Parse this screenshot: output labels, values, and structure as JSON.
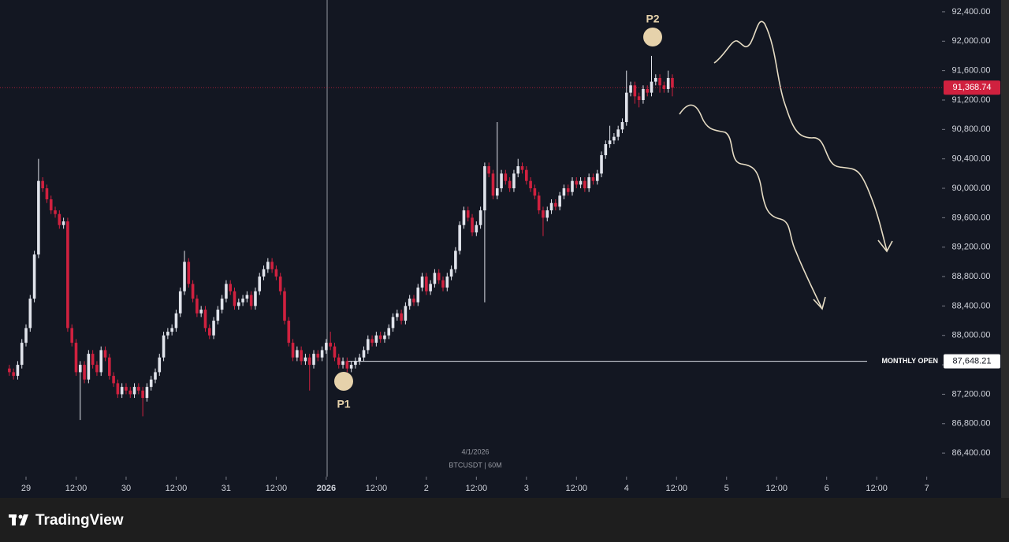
{
  "chart_data": {
    "type": "candlestick",
    "watermark": [
      "4/1/2026",
      "BTCUSDT | 60M"
    ],
    "brand": "TradingView",
    "up_color": "#e0e3eb",
    "down_color": "#d0213f",
    "x": [
      -4,
      -3,
      -2,
      -1,
      0,
      1,
      2,
      3,
      4,
      5,
      6,
      7,
      8,
      9,
      10,
      11,
      12,
      13,
      14,
      15,
      16,
      17,
      18,
      19,
      20,
      21,
      22,
      23,
      24,
      25,
      26,
      27,
      28,
      29,
      30,
      31,
      32,
      33,
      34,
      35,
      36,
      37,
      38,
      39,
      40,
      41,
      42,
      43,
      44,
      45,
      46,
      47,
      48,
      49,
      50,
      51,
      52,
      53,
      54,
      55,
      56,
      57,
      58,
      59,
      60,
      61,
      62,
      63,
      64,
      65,
      66,
      67,
      68,
      69,
      70,
      71,
      72,
      73,
      74,
      75,
      76,
      77,
      78,
      79,
      80,
      81,
      82,
      83,
      84,
      85,
      86,
      87,
      88,
      89,
      90,
      91,
      92,
      93,
      94,
      95,
      96,
      97,
      98,
      99,
      100,
      101,
      102,
      103,
      104,
      105,
      106,
      107,
      108,
      109,
      110,
      111,
      112,
      113,
      114,
      115,
      116,
      117,
      118,
      119,
      120,
      121,
      122,
      123,
      124,
      125,
      126,
      127,
      128,
      129,
      130,
      131,
      132,
      133,
      134,
      135,
      136,
      137,
      138,
      139,
      140,
      141,
      142,
      143,
      144,
      145,
      146,
      147,
      148,
      149,
      150,
      151,
      152,
      153,
      154,
      155
    ],
    "open": [
      87550,
      87500,
      87450,
      87600,
      87900,
      88100,
      88500,
      89100,
      90100,
      90000,
      89850,
      89700,
      89650,
      89500,
      89550,
      88100,
      87900,
      87500,
      87600,
      87400,
      87750,
      87600,
      87500,
      87800,
      87700,
      87450,
      87350,
      87200,
      87300,
      87250,
      87200,
      87300,
      87250,
      87150,
      87300,
      87400,
      87500,
      87700,
      88000,
      88050,
      88100,
      88300,
      88600,
      89000,
      88700,
      88500,
      88300,
      88350,
      88100,
      88000,
      88200,
      88350,
      88500,
      88700,
      88600,
      88400,
      88450,
      88500,
      88550,
      88400,
      88600,
      88800,
      88900,
      89000,
      88900,
      88800,
      88600,
      88200,
      87900,
      87700,
      87800,
      87650,
      87700,
      87600,
      87750,
      87700,
      87800,
      87900,
      87850,
      87700,
      87600,
      87650,
      87550,
      87600,
      87650,
      87700,
      87800,
      87950,
      87900,
      88000,
      87950,
      88000,
      88100,
      88250,
      88300,
      88200,
      88400,
      88500,
      88450,
      88650,
      88800,
      88600,
      88700,
      88850,
      88750,
      88650,
      88800,
      88900,
      89150,
      89500,
      89700,
      89600,
      89400,
      89500,
      89700,
      90300,
      90200,
      89900,
      90000,
      90200,
      90100,
      90000,
      90200,
      90300,
      90250,
      90100,
      90000,
      89900,
      89700,
      89600,
      89700,
      89800,
      89750,
      89900,
      90000,
      89950,
      90100,
      90050,
      90100,
      90000,
      90150,
      90100,
      90200,
      90450,
      90600,
      90650,
      90700,
      90800,
      90900,
      91300,
      91400,
      91250,
      91200,
      91350,
      91300,
      91450,
      91500,
      91400,
      91350,
      91500
    ],
    "high": [
      87600,
      87550,
      87650,
      87950,
      88150,
      88550,
      89150,
      90400,
      90150,
      90050,
      89900,
      89750,
      89700,
      89600,
      89600,
      88150,
      87950,
      87650,
      87650,
      87800,
      87800,
      87650,
      87850,
      87850,
      87750,
      87500,
      87400,
      87350,
      87350,
      87300,
      87350,
      87350,
      87300,
      87350,
      87450,
      87550,
      87750,
      88050,
      88100,
      88150,
      88350,
      88650,
      89150,
      89050,
      88750,
      88550,
      88400,
      88400,
      88150,
      88250,
      88400,
      88550,
      88750,
      88750,
      88650,
      88500,
      88550,
      88600,
      88600,
      88650,
      88850,
      88950,
      89050,
      89050,
      88950,
      88850,
      88650,
      88250,
      87950,
      87850,
      87850,
      87750,
      87750,
      87800,
      87800,
      87850,
      87950,
      88050,
      87900,
      87750,
      87700,
      87700,
      87650,
      87700,
      87750,
      87850,
      88000,
      88000,
      88050,
      88050,
      88050,
      88150,
      88300,
      88350,
      88350,
      88450,
      88550,
      88550,
      88700,
      88850,
      88850,
      88750,
      88900,
      88900,
      88800,
      88850,
      88950,
      89200,
      89550,
      89750,
      89750,
      89650,
      89550,
      89750,
      90350,
      90350,
      90250,
      90900,
      90250,
      90250,
      90150,
      90250,
      90400,
      90350,
      90300,
      90150,
      90050,
      89950,
      89750,
      89750,
      89850,
      89850,
      89950,
      90050,
      90050,
      90150,
      90150,
      90150,
      90150,
      90200,
      90200,
      90250,
      90500,
      90650,
      90850,
      90750,
      90850,
      90950,
      91600,
      91450,
      91450,
      91300,
      91400,
      91400,
      91800,
      91550,
      91550,
      91450,
      91600,
      91550
    ],
    "low": [
      87450,
      87400,
      87400,
      87550,
      87850,
      88050,
      88450,
      89050,
      89950,
      89800,
      89650,
      89600,
      89450,
      89450,
      88050,
      87850,
      87450,
      86850,
      87350,
      87350,
      87550,
      87450,
      87450,
      87650,
      87400,
      87300,
      87150,
      87150,
      87200,
      87150,
      87150,
      87200,
      86900,
      87100,
      87250,
      87350,
      87450,
      87650,
      87950,
      88000,
      88050,
      88250,
      88550,
      88650,
      88450,
      88250,
      88250,
      88050,
      87950,
      87950,
      88150,
      88300,
      88450,
      88550,
      88350,
      88350,
      88400,
      88450,
      88350,
      88350,
      88550,
      88750,
      88850,
      88850,
      88750,
      88550,
      88150,
      87850,
      87650,
      87650,
      87600,
      87600,
      87250,
      87550,
      87650,
      87650,
      87750,
      87800,
      87650,
      87550,
      87550,
      87500,
      87500,
      87550,
      87600,
      87650,
      87750,
      87850,
      87850,
      87900,
      87900,
      87950,
      88050,
      88200,
      88150,
      88150,
      88350,
      88400,
      88400,
      88600,
      88550,
      88550,
      88650,
      88700,
      88600,
      88600,
      88750,
      88850,
      89100,
      89450,
      89550,
      89350,
      89350,
      89450,
      88450,
      90150,
      89850,
      89850,
      89950,
      90050,
      89950,
      89950,
      90150,
      90200,
      90050,
      89950,
      89850,
      89650,
      89350,
      89550,
      89650,
      89700,
      89700,
      89850,
      89900,
      89900,
      90000,
      90000,
      89950,
      89950,
      90050,
      90050,
      90150,
      90400,
      90550,
      90600,
      90650,
      90750,
      90850,
      91250,
      91150,
      91100,
      91150,
      91250,
      91250,
      91400,
      91300,
      91300,
      91300,
      91250
    ],
    "close": [
      87500,
      87450,
      87600,
      87900,
      88100,
      88500,
      89100,
      90100,
      90000,
      89850,
      89700,
      89650,
      89500,
      89550,
      88100,
      87900,
      87500,
      87600,
      87400,
      87750,
      87600,
      87500,
      87800,
      87700,
      87450,
      87350,
      87200,
      87300,
      87250,
      87200,
      87300,
      87250,
      87150,
      87300,
      87400,
      87500,
      87700,
      88000,
      88050,
      88100,
      88300,
      88600,
      89000,
      88700,
      88500,
      88300,
      88350,
      88100,
      88000,
      88200,
      88350,
      88500,
      88700,
      88600,
      88400,
      88450,
      88500,
      88550,
      88400,
      88600,
      88800,
      88900,
      89000,
      88900,
      88800,
      88600,
      88200,
      87900,
      87700,
      87800,
      87650,
      87700,
      87600,
      87750,
      87700,
      87800,
      87900,
      87850,
      87700,
      87600,
      87650,
      87550,
      87600,
      87650,
      87700,
      87800,
      87950,
      87900,
      88000,
      87950,
      88000,
      88100,
      88250,
      88300,
      88200,
      88400,
      88500,
      88450,
      88650,
      88800,
      88600,
      88700,
      88850,
      88750,
      88650,
      88800,
      88900,
      89150,
      89500,
      89700,
      89600,
      89400,
      89500,
      89700,
      90300,
      90200,
      89900,
      90000,
      90200,
      90100,
      90000,
      90200,
      90300,
      90250,
      90100,
      90000,
      89900,
      89700,
      89600,
      89700,
      89800,
      89750,
      89900,
      90000,
      89950,
      90100,
      90050,
      90100,
      90000,
      90150,
      90100,
      90200,
      90450,
      90600,
      90650,
      90700,
      90800,
      90900,
      91300,
      91400,
      91250,
      91200,
      91350,
      91300,
      91450,
      91500,
      91400,
      91350,
      91500,
      91368.74
    ],
    "xlim": [
      -6.24,
      219.66
    ],
    "xticks": [
      {
        "value": 0,
        "label": "29"
      },
      {
        "value": 12,
        "label": "12:00"
      },
      {
        "value": 24,
        "label": "30"
      },
      {
        "value": 36,
        "label": "12:00"
      },
      {
        "value": 48,
        "label": "31"
      },
      {
        "value": 60,
        "label": "12:00"
      },
      {
        "value": 72,
        "label": "2026"
      },
      {
        "value": 84,
        "label": "12:00"
      },
      {
        "value": 96,
        "label": "2"
      },
      {
        "value": 108,
        "label": "12:00"
      },
      {
        "value": 120,
        "label": "3"
      },
      {
        "value": 132,
        "label": "12:00"
      },
      {
        "value": 144,
        "label": "4"
      },
      {
        "value": 156,
        "label": "12:00"
      },
      {
        "value": 168,
        "label": "5"
      },
      {
        "value": 180,
        "label": "12:00"
      },
      {
        "value": 192,
        "label": "6"
      },
      {
        "value": 204,
        "label": "12:00"
      },
      {
        "value": 216,
        "label": "7"
      }
    ],
    "ylim": [
      86080,
      92560
    ],
    "yticks": [
      {
        "value": 86400,
        "label": "86,400.00"
      },
      {
        "value": 86800,
        "label": "86,800.00"
      },
      {
        "value": 87200,
        "label": "87,200.00"
      },
      {
        "value": 87600,
        "label": "87,600.00"
      },
      {
        "value": 88000,
        "label": "88,000.00"
      },
      {
        "value": 88400,
        "label": "88,400.00"
      },
      {
        "value": 88800,
        "label": "88,800.00"
      },
      {
        "value": 89200,
        "label": "89,200.00"
      },
      {
        "value": 89600,
        "label": "89,600.00"
      },
      {
        "value": 90000,
        "label": "90,000.00"
      },
      {
        "value": 90400,
        "label": "90,400.00"
      },
      {
        "value": 90800,
        "label": "90,800.00"
      },
      {
        "value": 91200,
        "label": "91,200.00"
      },
      {
        "value": 91600,
        "label": "91,600.00"
      },
      {
        "value": 92000,
        "label": "92,000.00"
      },
      {
        "value": 92400,
        "label": "92,400.00"
      }
    ],
    "price_line": {
      "value": 91368.74,
      "label": "91,368.74",
      "color": "#d0213f"
    },
    "monthly_open": {
      "text": "MONTHLY OPEN",
      "value": 87648.21,
      "label": "87,648.21"
    },
    "annotations": [
      {
        "text": "P1"
      },
      {
        "text": "P2"
      }
    ]
  }
}
